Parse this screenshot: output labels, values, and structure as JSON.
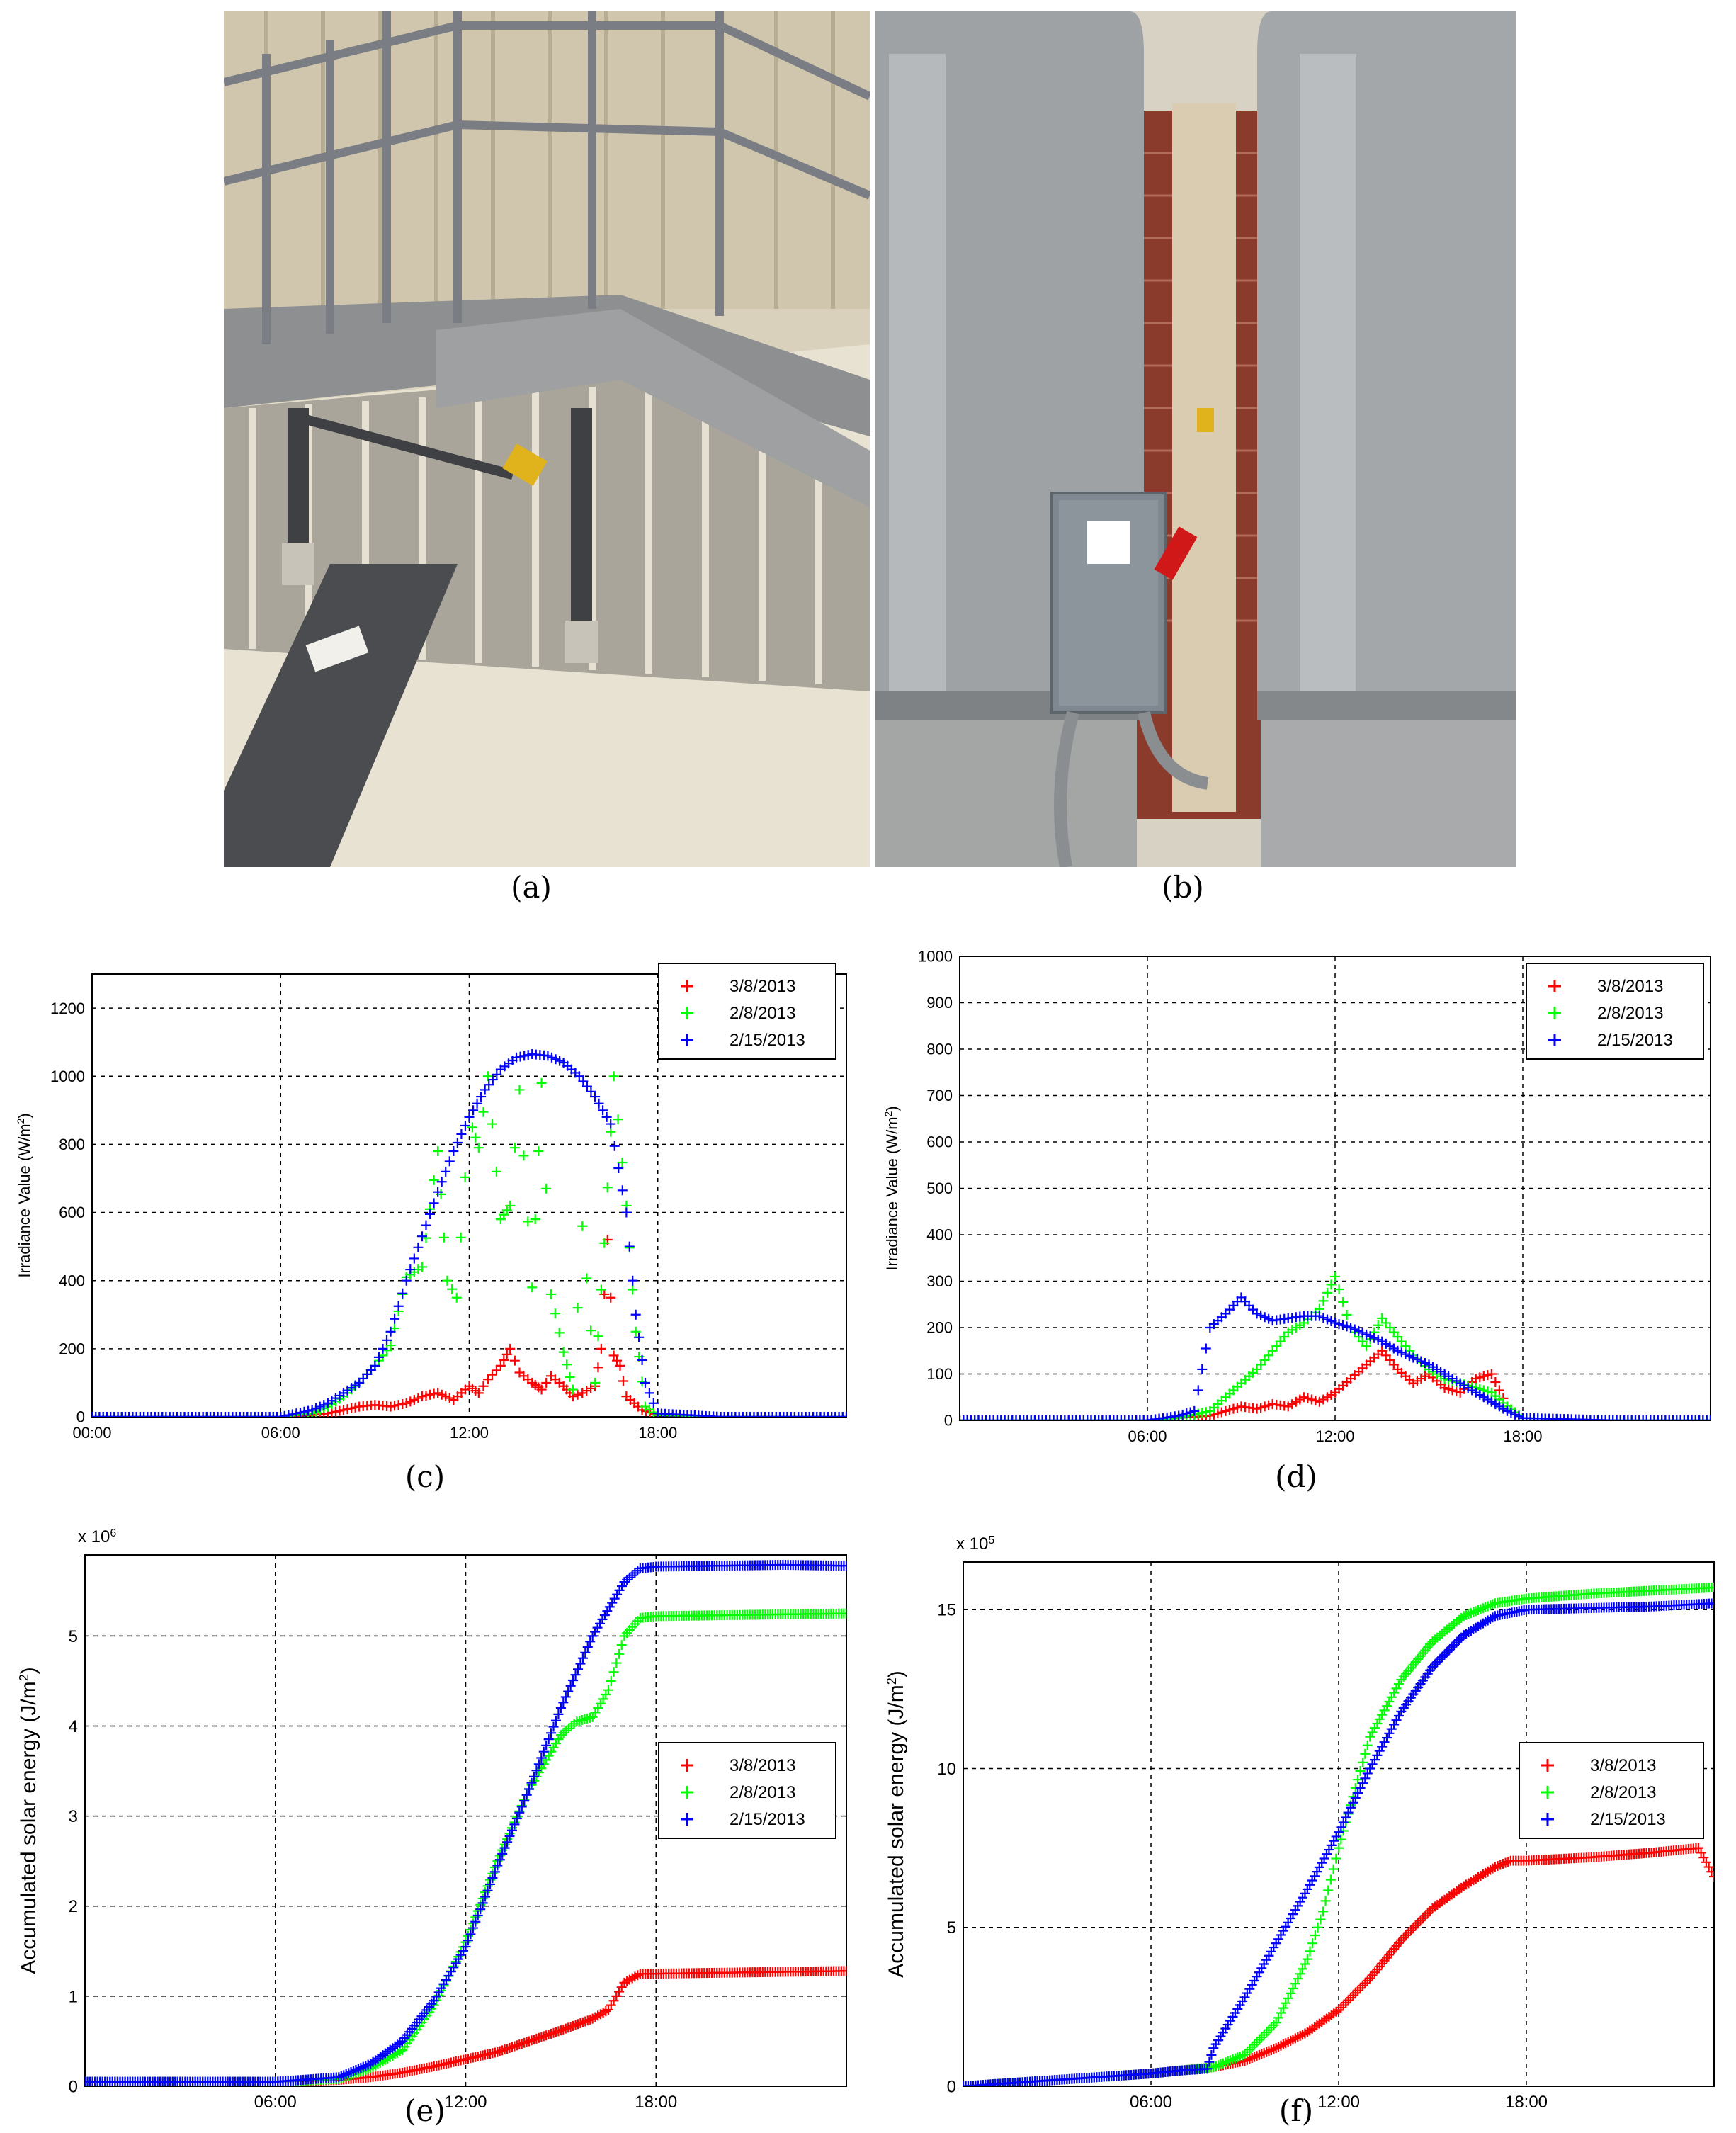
{
  "captions": [
    "(a)",
    "(b)",
    "(c)",
    "(d)",
    "(e)",
    "(f)"
  ],
  "colors": {
    "red": "#ff0000",
    "green": "#00ff00",
    "blue": "#0000ff"
  },
  "chart_data": [
    {
      "panel": "(c)",
      "type": "scatter",
      "title": "",
      "xlabel": "",
      "ylabel": "Irradiance Value (W/m",
      "ylabel_sup": "2",
      "ylabel_close": ")",
      "xlim": [
        0,
        24
      ],
      "ylim": [
        0,
        1300
      ],
      "xticks": [
        0,
        6,
        12,
        18
      ],
      "xtick_labels": [
        "00:00",
        "06:00",
        "12:00",
        "18:00"
      ],
      "yticks": [
        0,
        200,
        400,
        600,
        800,
        1000,
        1200
      ],
      "ytick_labels": [
        "0",
        "200",
        "400",
        "600",
        "800",
        "1000",
        "1200"
      ],
      "grid": true,
      "legend": "top-right",
      "series": [
        {
          "name": "3/8/2013",
          "color": "#ff0000",
          "x": [
            0,
            2,
            4,
            6,
            7,
            7.5,
            8,
            8.5,
            9,
            9.5,
            10,
            10.5,
            11,
            11.5,
            12,
            12.3,
            12.6,
            13,
            13.3,
            13.6,
            14,
            14.3,
            14.6,
            15,
            15.3,
            15.6,
            16,
            16.2,
            16.4,
            16.6,
            16.8,
            17,
            17.5,
            18,
            20,
            22,
            24
          ],
          "y": [
            0,
            0,
            0,
            0,
            5,
            10,
            20,
            30,
            35,
            30,
            40,
            60,
            70,
            50,
            90,
            70,
            110,
            150,
            200,
            130,
            100,
            80,
            120,
            90,
            60,
            70,
            90,
            200,
            520,
            180,
            150,
            60,
            20,
            5,
            0,
            0,
            0
          ]
        },
        {
          "name": "2/8/2013",
          "color": "#00ff00",
          "x": [
            0,
            2,
            4,
            6,
            7,
            7.5,
            8,
            8.5,
            9,
            9.5,
            10,
            10.5,
            11,
            11.3,
            11.6,
            12,
            12.3,
            12.6,
            13,
            13.3,
            13.6,
            14,
            14.3,
            14.6,
            15,
            15.3,
            15.6,
            16,
            16.3,
            16.6,
            17,
            17.3,
            17.6,
            18,
            20,
            22,
            24
          ],
          "y": [
            0,
            0,
            0,
            0,
            10,
            30,
            60,
            100,
            150,
            210,
            410,
            440,
            780,
            400,
            350,
            880,
            790,
            1000,
            580,
            620,
            960,
            380,
            980,
            360,
            190,
            80,
            560,
            100,
            510,
            1000,
            620,
            250,
            30,
            5,
            0,
            0,
            0
          ]
        },
        {
          "name": "2/15/2013",
          "color": "#0000ff",
          "x": [
            0,
            2,
            4,
            6,
            7,
            7.5,
            8,
            8.5,
            9,
            9.5,
            10,
            10.5,
            11,
            11.5,
            12,
            12.5,
            13,
            13.5,
            14,
            14.5,
            15,
            15.5,
            16,
            16.5,
            17,
            17.3,
            17.6,
            18,
            20,
            22,
            24
          ],
          "y": [
            0,
            0,
            0,
            0,
            20,
            40,
            70,
            100,
            150,
            250,
            400,
            530,
            660,
            780,
            880,
            960,
            1020,
            1055,
            1065,
            1060,
            1040,
            1000,
            940,
            860,
            600,
            300,
            100,
            10,
            0,
            0,
            0
          ]
        }
      ]
    },
    {
      "panel": "(d)",
      "type": "scatter",
      "title": "",
      "xlabel": "",
      "ylabel": "Irradiance Value (W/m",
      "ylabel_sup": "2",
      "ylabel_close": ")",
      "xlim": [
        0,
        24
      ],
      "ylim": [
        0,
        1000
      ],
      "xticks": [
        6,
        12,
        18
      ],
      "xtick_labels": [
        "06:00",
        "12:00",
        "18:00"
      ],
      "yticks": [
        0,
        100,
        200,
        300,
        400,
        500,
        600,
        700,
        800,
        900,
        1000
      ],
      "ytick_labels": [
        "0",
        "100",
        "200",
        "300",
        "400",
        "500",
        "600",
        "700",
        "800",
        "900",
        "1000"
      ],
      "grid": true,
      "legend": "top-right",
      "series": [
        {
          "name": "3/8/2013",
          "color": "#ff0000",
          "x": [
            0,
            3,
            6,
            7,
            8,
            8.5,
            9,
            9.5,
            10,
            10.5,
            11,
            11.5,
            12,
            12.5,
            13,
            13.5,
            14,
            14.5,
            15,
            15.5,
            16,
            16.5,
            17,
            17.5,
            18,
            21,
            24
          ],
          "y": [
            0,
            0,
            0,
            5,
            10,
            20,
            30,
            25,
            35,
            30,
            50,
            40,
            60,
            90,
            120,
            150,
            110,
            80,
            100,
            70,
            60,
            90,
            100,
            30,
            5,
            0,
            0
          ]
        },
        {
          "name": "2/8/2013",
          "color": "#00ff00",
          "x": [
            0,
            3,
            6,
            7,
            8,
            8.5,
            9,
            9.5,
            10,
            10.5,
            11,
            11.5,
            12,
            12.5,
            13,
            13.5,
            14,
            14.5,
            15,
            15.5,
            16,
            16.5,
            17,
            17.5,
            18,
            21,
            24
          ],
          "y": [
            0,
            0,
            0,
            5,
            20,
            50,
            80,
            110,
            150,
            190,
            210,
            240,
            310,
            200,
            160,
            220,
            180,
            140,
            110,
            90,
            80,
            70,
            60,
            30,
            5,
            0,
            0
          ]
        },
        {
          "name": "2/15/2013",
          "color": "#0000ff",
          "x": [
            0,
            3,
            6,
            7,
            7.5,
            8,
            8.5,
            9,
            9.5,
            10,
            10.5,
            11,
            11.5,
            12,
            12.5,
            13,
            13.5,
            14,
            14.5,
            15,
            15.5,
            16,
            16.5,
            17,
            17.5,
            18,
            21,
            24
          ],
          "y": [
            0,
            0,
            0,
            10,
            20,
            200,
            230,
            265,
            230,
            215,
            220,
            225,
            225,
            210,
            200,
            185,
            170,
            150,
            135,
            120,
            100,
            80,
            60,
            40,
            20,
            5,
            0,
            0
          ]
        }
      ]
    },
    {
      "panel": "(e)",
      "type": "line",
      "title": "",
      "xlabel": "",
      "ylabel": "Accumulated solar energy (J/m",
      "ylabel_sup": "2",
      "ylabel_close": ")",
      "multiplier": "x 10",
      "multiplier_exp": "6",
      "xlim": [
        0,
        24
      ],
      "ylim": [
        0,
        5.9
      ],
      "xticks": [
        6,
        12,
        18
      ],
      "xtick_labels": [
        "06:00",
        "12:00",
        "18:00"
      ],
      "yticks": [
        0,
        1,
        2,
        3,
        4,
        5
      ],
      "ytick_labels": [
        "0",
        "1",
        "2",
        "3",
        "4",
        "5"
      ],
      "grid": true,
      "legend": "center-right",
      "series": [
        {
          "name": "3/8/2013",
          "color": "#ff0000",
          "x": [
            0,
            3,
            6,
            8,
            9,
            10,
            11,
            12,
            13,
            14,
            15,
            16,
            16.5,
            17,
            17.5,
            18,
            20,
            22,
            24
          ],
          "y": [
            0.05,
            0.05,
            0.05,
            0.07,
            0.1,
            0.15,
            0.22,
            0.3,
            0.38,
            0.5,
            0.62,
            0.75,
            0.85,
            1.15,
            1.25,
            1.25,
            1.26,
            1.27,
            1.28
          ]
        },
        {
          "name": "2/8/2013",
          "color": "#00ff00",
          "x": [
            0,
            3,
            6,
            8,
            9,
            10,
            11,
            12,
            13,
            14,
            15,
            15.5,
            16,
            16.5,
            17,
            17.5,
            18,
            20,
            22,
            24
          ],
          "y": [
            0.05,
            0.05,
            0.05,
            0.08,
            0.2,
            0.4,
            0.9,
            1.6,
            2.5,
            3.3,
            3.9,
            4.05,
            4.1,
            4.4,
            5.0,
            5.2,
            5.22,
            5.23,
            5.24,
            5.25
          ]
        },
        {
          "name": "2/15/2013",
          "color": "#0000ff",
          "x": [
            0,
            3,
            6,
            8,
            9,
            10,
            11,
            12,
            13,
            14,
            15,
            16,
            17,
            17.5,
            18,
            20,
            22,
            24
          ],
          "y": [
            0.05,
            0.05,
            0.05,
            0.1,
            0.25,
            0.5,
            0.95,
            1.55,
            2.45,
            3.3,
            4.2,
            5.0,
            5.6,
            5.75,
            5.77,
            5.78,
            5.79,
            5.78
          ]
        }
      ]
    },
    {
      "panel": "(f)",
      "type": "line",
      "title": "",
      "xlabel": "",
      "ylabel": "Accumulated solar energy (J/m",
      "ylabel_sup": "2",
      "ylabel_close": ")",
      "multiplier": "x 10",
      "multiplier_exp": "5",
      "xlim": [
        0,
        24
      ],
      "ylim": [
        0,
        16.5
      ],
      "xticks": [
        6,
        12,
        18
      ],
      "xtick_labels": [
        "06:00",
        "12:00",
        "18:00"
      ],
      "yticks": [
        0,
        5,
        10,
        15
      ],
      "ytick_labels": [
        "0",
        "5",
        "10",
        "15"
      ],
      "grid": true,
      "legend": "center-right",
      "series": [
        {
          "name": "3/8/2013",
          "color": "#ff0000",
          "x": [
            0,
            3,
            6,
            7,
            8,
            9,
            10,
            11,
            12,
            13,
            14,
            15,
            16,
            17,
            17.5,
            18,
            20,
            22,
            23.5,
            24
          ],
          "y": [
            0,
            0.2,
            0.4,
            0.5,
            0.6,
            0.8,
            1.2,
            1.7,
            2.4,
            3.4,
            4.6,
            5.6,
            6.3,
            6.9,
            7.1,
            7.1,
            7.2,
            7.35,
            7.5,
            6.6
          ]
        },
        {
          "name": "2/8/2013",
          "color": "#00ff00",
          "x": [
            0,
            3,
            6,
            7,
            8,
            9,
            10,
            11,
            11.5,
            12,
            13,
            14,
            15,
            16,
            17,
            18,
            20,
            22,
            24
          ],
          "y": [
            0,
            0.2,
            0.4,
            0.5,
            0.6,
            1.0,
            2.0,
            4.0,
            5.5,
            7.5,
            11.0,
            12.8,
            14.0,
            14.8,
            15.2,
            15.35,
            15.5,
            15.6,
            15.7
          ]
        },
        {
          "name": "2/15/2013",
          "color": "#0000ff",
          "x": [
            0,
            3,
            6,
            7,
            7.8,
            8,
            9,
            10,
            11,
            12,
            13,
            14,
            15,
            16,
            17,
            18,
            20,
            22,
            24
          ],
          "y": [
            0,
            0.2,
            0.4,
            0.5,
            0.55,
            1.2,
            2.8,
            4.5,
            6.2,
            8.0,
            10.0,
            11.8,
            13.2,
            14.2,
            14.8,
            15.0,
            15.05,
            15.1,
            15.2
          ]
        }
      ]
    }
  ]
}
